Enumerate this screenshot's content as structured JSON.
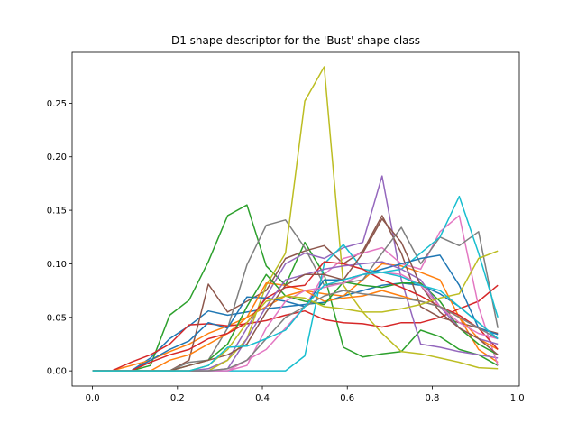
{
  "chart_data": {
    "type": "line",
    "title": "D1 shape descriptor for the 'Bust' shape class",
    "xlabel": "",
    "ylabel": "",
    "xlim": [
      -0.048,
      1.005
    ],
    "ylim": [
      -0.0142,
      0.2975
    ],
    "xticks": [
      0.0,
      0.2,
      0.4,
      0.6,
      0.8,
      1.0
    ],
    "xtick_labels": [
      "0.0",
      "0.2",
      "0.4",
      "0.6",
      "0.8",
      "1.0"
    ],
    "yticks": [
      0.0,
      0.05,
      0.1,
      0.15,
      0.2,
      0.25
    ],
    "ytick_labels": [
      "0.00",
      "0.05",
      "0.10",
      "0.15",
      "0.20",
      "0.25"
    ],
    "grid": false,
    "legend": "none",
    "x": [
      0.0,
      0.0455,
      0.0909,
      0.1364,
      0.1818,
      0.2273,
      0.2727,
      0.3182,
      0.3636,
      0.4091,
      0.4545,
      0.5,
      0.5455,
      0.5909,
      0.6364,
      0.6818,
      0.7273,
      0.7727,
      0.8182,
      0.8636,
      0.9091,
      0.9545
    ],
    "series": [
      {
        "color": "#1f77b4",
        "values": [
          0,
          0,
          0,
          0.012,
          0.03,
          0.042,
          0.056,
          0.052,
          0.055,
          0.058,
          0.06,
          0.062,
          0.064,
          0.07,
          0.075,
          0.08,
          0.082,
          0.08,
          0.072,
          0.06,
          0.045,
          0.03
        ]
      },
      {
        "color": "#ff7f0e",
        "values": [
          0,
          0,
          0.005,
          0.01,
          0.018,
          0.025,
          0.035,
          0.042,
          0.05,
          0.06,
          0.07,
          0.075,
          0.072,
          0.07,
          0.085,
          0.1,
          0.098,
          0.092,
          0.085,
          0.05,
          0.02,
          0.008
        ]
      },
      {
        "color": "#2ca02c",
        "values": [
          0,
          0,
          0,
          0.005,
          0.052,
          0.066,
          0.102,
          0.145,
          0.155,
          0.098,
          0.08,
          0.12,
          0.09,
          0.022,
          0.013,
          0.016,
          0.018,
          0.038,
          0.032,
          0.02,
          0.015,
          0.005
        ]
      },
      {
        "color": "#d62728",
        "values": [
          0,
          0,
          0.008,
          0.015,
          0.025,
          0.043,
          0.044,
          0.042,
          0.044,
          0.047,
          0.052,
          0.056,
          0.048,
          0.045,
          0.044,
          0.041,
          0.045,
          0.045,
          0.05,
          0.058,
          0.065,
          0.08
        ]
      },
      {
        "color": "#9467bd",
        "values": [
          0,
          0,
          0,
          0,
          0,
          0,
          0.002,
          0.01,
          0.04,
          0.07,
          0.1,
          0.11,
          0.105,
          0.115,
          0.12,
          0.182,
          0.085,
          0.025,
          0.022,
          0.018,
          0.015,
          0.012
        ]
      },
      {
        "color": "#8c564b",
        "values": [
          0,
          0,
          0,
          0,
          0,
          0.01,
          0.081,
          0.055,
          0.065,
          0.075,
          0.105,
          0.112,
          0.117,
          0.1,
          0.112,
          0.145,
          0.11,
          0.06,
          0.05,
          0.045,
          0.04,
          0.035
        ]
      },
      {
        "color": "#e377c2",
        "values": [
          0,
          0,
          0,
          0,
          0,
          0,
          0,
          0,
          0.01,
          0.02,
          0.04,
          0.06,
          0.09,
          0.105,
          0.11,
          0.115,
          0.1,
          0.095,
          0.13,
          0.145,
          0.06,
          0.005
        ]
      },
      {
        "color": "#7f7f7f",
        "values": [
          0,
          0,
          0,
          0,
          0,
          0.008,
          0.01,
          0.04,
          0.099,
          0.136,
          0.141,
          0.115,
          0.08,
          0.082,
          0.085,
          0.11,
          0.134,
          0.1,
          0.125,
          0.117,
          0.13,
          0.04
        ]
      },
      {
        "color": "#bcbd22",
        "values": [
          0,
          0,
          0,
          0,
          0,
          0,
          0,
          0.01,
          0.03,
          0.08,
          0.11,
          0.252,
          0.284,
          0.08,
          0.055,
          0.035,
          0.018,
          0.016,
          0.012,
          0.008,
          0.003,
          0.002
        ]
      },
      {
        "color": "#17becf",
        "values": [
          0,
          0,
          0,
          0,
          0,
          0,
          0,
          0,
          0,
          0,
          0,
          0.014,
          0.1,
          0.118,
          0.095,
          0.092,
          0.095,
          0.11,
          0.125,
          0.163,
          0.11,
          0.05
        ]
      },
      {
        "color": "#1f77b4",
        "values": [
          0,
          0,
          0,
          0.01,
          0.02,
          0.028,
          0.045,
          0.04,
          0.069,
          0.068,
          0.065,
          0.06,
          0.085,
          0.085,
          0.09,
          0.095,
          0.1,
          0.105,
          0.108,
          0.08,
          0.04,
          0.034
        ]
      },
      {
        "color": "#ff7f0e",
        "values": [
          0,
          0,
          0,
          0,
          0.01,
          0.015,
          0.025,
          0.035,
          0.05,
          0.082,
          0.08,
          0.075,
          0.065,
          0.068,
          0.07,
          0.075,
          0.07,
          0.065,
          0.06,
          0.05,
          0.03,
          0.02
        ]
      },
      {
        "color": "#2ca02c",
        "values": [
          0,
          0,
          0,
          0,
          0,
          0.005,
          0.01,
          0.025,
          0.06,
          0.09,
          0.07,
          0.065,
          0.062,
          0.083,
          0.08,
          0.078,
          0.082,
          0.082,
          0.065,
          0.04,
          0.025,
          0.015
        ]
      },
      {
        "color": "#d62728",
        "values": [
          0,
          0,
          0,
          0.008,
          0.015,
          0.02,
          0.03,
          0.035,
          0.045,
          0.068,
          0.078,
          0.08,
          0.102,
          0.1,
          0.095,
          0.085,
          0.078,
          0.07,
          0.06,
          0.052,
          0.04,
          0.02
        ]
      },
      {
        "color": "#9467bd",
        "values": [
          0,
          0,
          0,
          0,
          0,
          0,
          0,
          0.002,
          0.03,
          0.06,
          0.085,
          0.09,
          0.095,
          0.098,
          0.1,
          0.102,
          0.095,
          0.085,
          0.06,
          0.04,
          0.03,
          0.025
        ]
      },
      {
        "color": "#8c564b",
        "values": [
          0,
          0,
          0,
          0,
          0,
          0.005,
          0.01,
          0.015,
          0.025,
          0.055,
          0.08,
          0.09,
          0.09,
          0.085,
          0.11,
          0.142,
          0.12,
          0.08,
          0.055,
          0.04,
          0.03,
          0.015
        ]
      },
      {
        "color": "#e377c2",
        "values": [
          0,
          0,
          0,
          0,
          0,
          0,
          0,
          0,
          0.005,
          0.04,
          0.065,
          0.075,
          0.078,
          0.082,
          0.09,
          0.092,
          0.09,
          0.08,
          0.06,
          0.045,
          0.035,
          0.03
        ]
      },
      {
        "color": "#7f7f7f",
        "values": [
          0,
          0,
          0,
          0,
          0,
          0,
          0,
          0.002,
          0.01,
          0.03,
          0.05,
          0.06,
          0.07,
          0.075,
          0.072,
          0.07,
          0.068,
          0.065,
          0.06,
          0.05,
          0.04,
          0.03
        ]
      },
      {
        "color": "#bcbd22",
        "values": [
          0,
          0,
          0,
          0,
          0,
          0,
          0.005,
          0.02,
          0.045,
          0.065,
          0.07,
          0.068,
          0.06,
          0.058,
          0.055,
          0.055,
          0.058,
          0.062,
          0.068,
          0.072,
          0.105,
          0.112
        ]
      },
      {
        "color": "#17becf",
        "values": [
          0,
          0,
          0,
          0,
          0,
          0,
          0.005,
          0.022,
          0.023,
          0.03,
          0.038,
          0.06,
          0.08,
          0.085,
          0.09,
          0.092,
          0.088,
          0.08,
          0.075,
          0.06,
          0.045,
          0.03
        ]
      }
    ]
  }
}
